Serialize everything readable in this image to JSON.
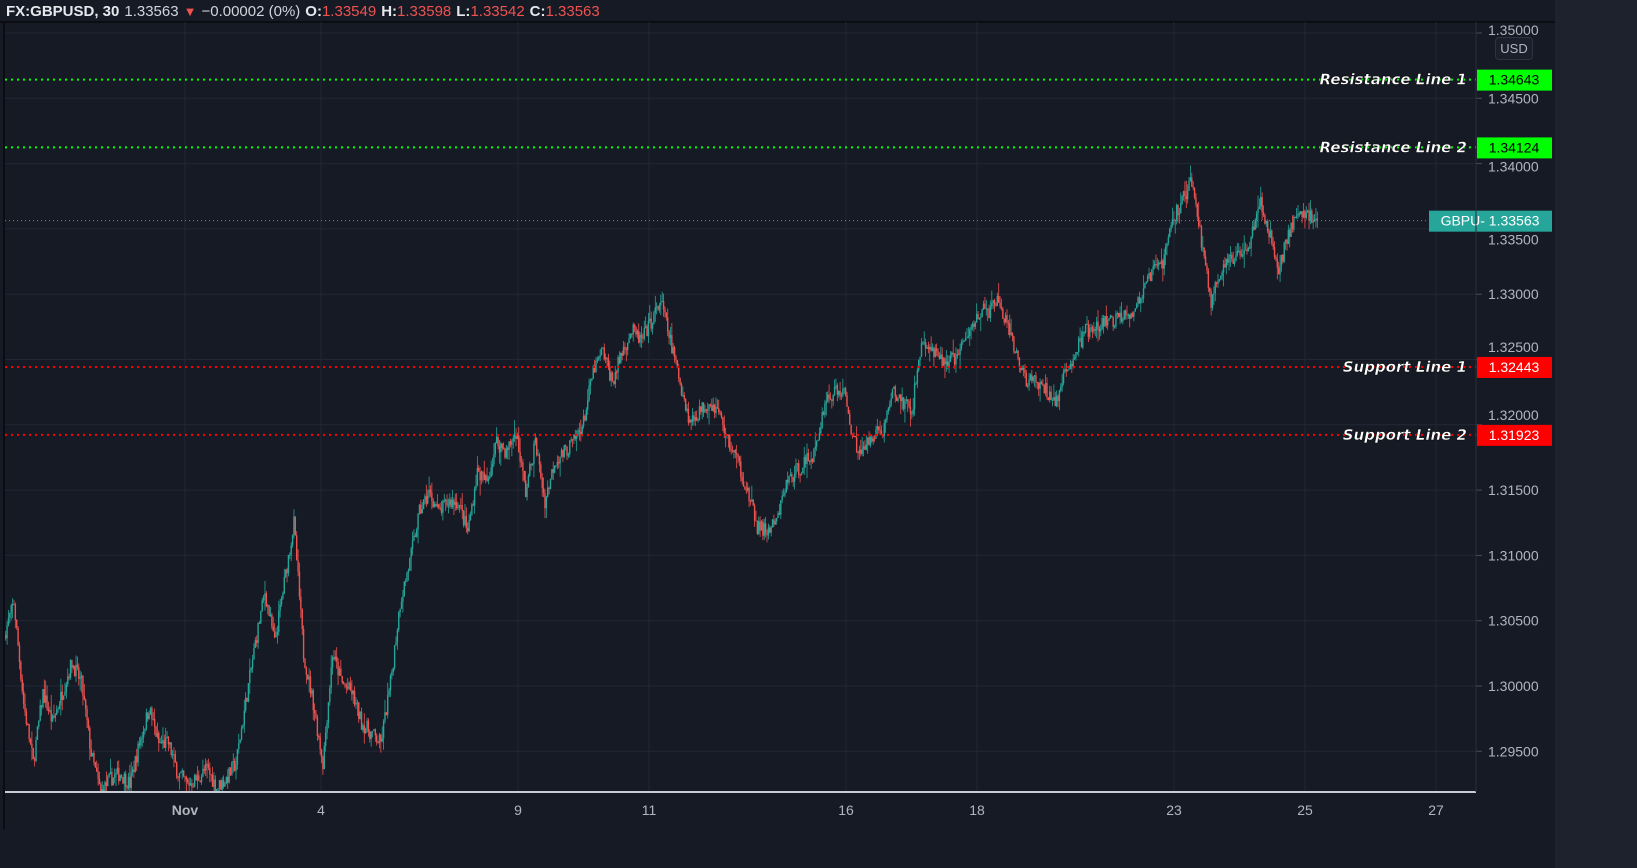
{
  "header": {
    "symbol": "FX:GBPUSD, 30",
    "last": "1.33563",
    "change_icon": "triangle-down",
    "change": "−0.00002 (0%)",
    "open_label": "O:",
    "open": "1.33549",
    "high_label": "H:",
    "high": "1.33598",
    "low_label": "L:",
    "low": "1.33542",
    "close_label": "C:",
    "close": "1.33563"
  },
  "currency_button": "USD",
  "colors": {
    "background": "#161a25",
    "up": "#26a69a",
    "down": "#ef5350",
    "resistance": "#00ff00",
    "support": "#ff0000",
    "last_price": "#26a69a"
  },
  "chart_data": {
    "type": "candlestick",
    "symbol": "GBPUSD",
    "interval": "30",
    "ylim": [
      1.2915,
      1.3515
    ],
    "grid": true,
    "y_ticks": [
      "1.35000",
      "1.34500",
      "1.34000",
      "1.33500",
      "1.33000",
      "1.32500",
      "1.32000",
      "1.31500",
      "1.31000",
      "1.30500",
      "1.30000",
      "1.29500"
    ],
    "x_ticks": [
      "Nov",
      "4",
      "9",
      "11",
      "16",
      "18",
      "23",
      "25",
      "27"
    ],
    "approx_close_path": [
      1.3039,
      1.3064,
      1.2987,
      1.2941,
      1.2995,
      1.2972,
      1.2995,
      1.3018,
      1.3002,
      1.2948,
      1.2918,
      1.2929,
      1.2933,
      1.2925,
      1.2956,
      1.2983,
      1.2956,
      1.2956,
      1.2933,
      1.2925,
      1.2929,
      1.2937,
      1.2922,
      1.2929,
      1.2941,
      1.2987,
      1.3033,
      1.3072,
      1.3033,
      1.3079,
      1.3125,
      1.3025,
      1.2987,
      1.2941,
      1.3025,
      1.3002,
      1.2995,
      1.2972,
      1.2964,
      1.2956,
      1.3002,
      1.3064,
      1.3095,
      1.3133,
      1.3148,
      1.3133,
      1.3141,
      1.3141,
      1.3118,
      1.3164,
      1.3156,
      1.3187,
      1.3179,
      1.3195,
      1.3148,
      1.3187,
      1.3141,
      1.3172,
      1.3179,
      1.3187,
      1.3202,
      1.3241,
      1.3256,
      1.3233,
      1.3256,
      1.3272,
      1.3264,
      1.3279,
      1.3295,
      1.3264,
      1.3233,
      1.3202,
      1.321,
      1.3218,
      1.321,
      1.3187,
      1.3172,
      1.3148,
      1.3122,
      1.3118,
      1.3125,
      1.3156,
      1.3164,
      1.3172,
      1.3179,
      1.3218,
      1.3225,
      1.3225,
      1.3187,
      1.3179,
      1.3195,
      1.3195,
      1.3225,
      1.3218,
      1.321,
      1.3264,
      1.3256,
      1.3249,
      1.3249,
      1.3256,
      1.3272,
      1.3287,
      1.3287,
      1.3295,
      1.3272,
      1.3249,
      1.3233,
      1.3233,
      1.3225,
      1.3218,
      1.3241,
      1.3256,
      1.3272,
      1.3272,
      1.3279,
      1.3279,
      1.3287,
      1.3287,
      1.3302,
      1.3318,
      1.3325,
      1.3356,
      1.3372,
      1.3387,
      1.3341,
      1.3295,
      1.3318,
      1.3325,
      1.3333,
      1.3341,
      1.3372,
      1.3348,
      1.3318,
      1.3348,
      1.336,
      1.3362,
      1.33563
    ],
    "horizontal_lines": [
      {
        "label": "Resistance Line 1",
        "price": 1.34643,
        "price_text": "1.34643",
        "kind": "resistance"
      },
      {
        "label": "Resistance Line 2",
        "price": 1.34124,
        "price_text": "1.34124",
        "kind": "resistance"
      },
      {
        "label": "Support Line 1",
        "price": 1.32443,
        "price_text": "1.32443",
        "kind": "support"
      },
      {
        "label": "Support Line 2",
        "price": 1.31923,
        "price_text": "1.31923",
        "kind": "support"
      }
    ],
    "last_price": {
      "label": "GBPU- 1.33563",
      "price": 1.33563
    }
  }
}
